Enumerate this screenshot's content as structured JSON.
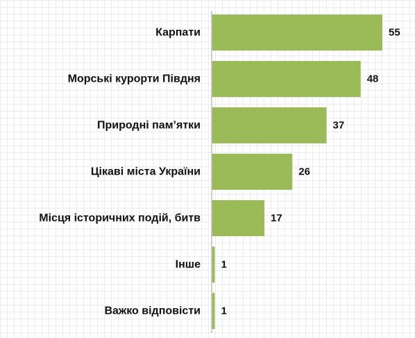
{
  "chart_data": {
    "type": "bar",
    "orientation": "horizontal",
    "categories": [
      "Карпати",
      "Морські курорти Півдня",
      "Природні пам’ятки",
      "Цікаві міста України",
      "Місця історичних подій, битв",
      "Інше",
      "Важко відповісти"
    ],
    "values": [
      55,
      48,
      37,
      26,
      17,
      1,
      1
    ],
    "title": "",
    "xlabel": "",
    "ylabel": "",
    "xlim": [
      0,
      55
    ],
    "grid": false,
    "legend": "none",
    "data_labels": true,
    "bar_color": "#9bbb59",
    "axis_color": "#bfbfbf"
  }
}
